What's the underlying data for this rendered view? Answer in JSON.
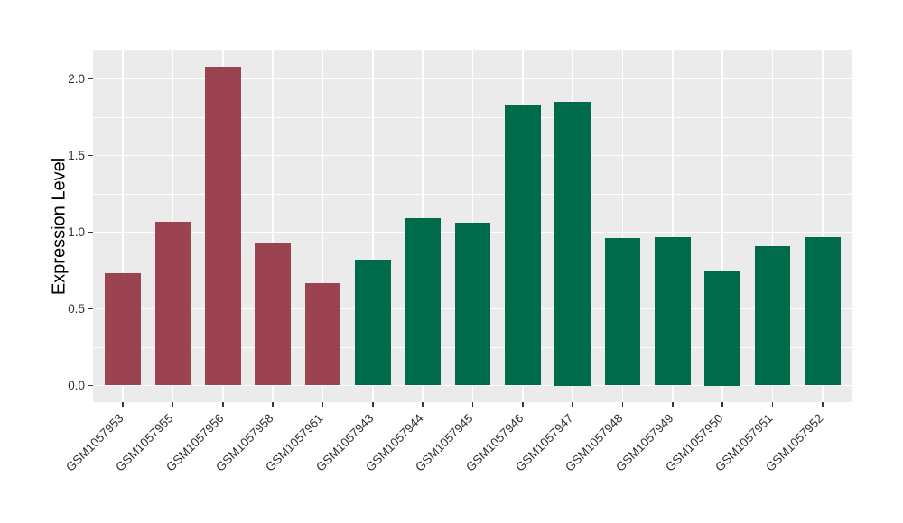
{
  "figure": {
    "background_color": "#FFFFFF",
    "panel_background_color": "#EBEBEB",
    "gridline_color": "#FFFFFF",
    "axis_text_color": "#303030",
    "axis_title_color": "#000000",
    "tick_mark_color": "#333333"
  },
  "chart_data": {
    "type": "bar",
    "title": "",
    "xlabel": "",
    "ylabel": "Expression Level",
    "legend": "none",
    "grid": true,
    "ylim": [
      0,
      2.18
    ],
    "yticks": [
      0.0,
      0.5,
      1.0,
      1.5,
      2.0
    ],
    "ytick_labels": [
      "0.0",
      "0.5",
      "1.0",
      "1.5",
      "2.0"
    ],
    "yticks_minor": [
      0.25,
      0.75,
      1.25,
      1.75
    ],
    "categories": [
      "GSM1057953",
      "GSM1057955",
      "GSM1057956",
      "GSM1057958",
      "GSM1057961",
      "GSM1057943",
      "GSM1057944",
      "GSM1057945",
      "GSM1057946",
      "GSM1057947",
      "GSM1057948",
      "GSM1057949",
      "GSM1057950",
      "GSM1057951",
      "GSM1057952"
    ],
    "values": [
      0.73,
      1.07,
      2.08,
      0.93,
      0.67,
      0.82,
      1.09,
      1.06,
      1.83,
      1.85,
      0.96,
      0.97,
      0.75,
      0.91,
      0.97
    ],
    "bar_colors": [
      "#9C4352",
      "#9C4352",
      "#9C4352",
      "#9C4352",
      "#9C4352",
      "#006B4A",
      "#006B4A",
      "#006B4A",
      "#006B4A",
      "#006B4A",
      "#006B4A",
      "#006B4A",
      "#006B4A",
      "#006B4A",
      "#006B4A"
    ],
    "group_colors": {
      "maroon_group": "#9C4352",
      "green_group": "#006B4A"
    }
  }
}
